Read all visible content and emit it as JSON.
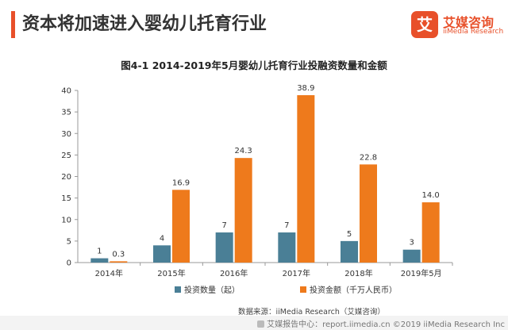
{
  "header": {
    "title": "资本将加速进入婴幼儿托育行业",
    "logo_mark": "艾",
    "logo_cn": "艾媒咨询",
    "logo_en": "iiMedia Research"
  },
  "chart_data": {
    "type": "bar",
    "title": "图4-1 2014-2019年5月婴幼儿托育行业投融资数量和金额",
    "categories": [
      "2014年",
      "2015年",
      "2016年",
      "2017年",
      "2018年",
      "2019年5月"
    ],
    "series": [
      {
        "name": "投资数量（起）",
        "color": "#4a7f96",
        "values": [
          1,
          4,
          7,
          7,
          5,
          3
        ]
      },
      {
        "name": "投资金额（千万人民币）",
        "color": "#ee7a1c",
        "values": [
          0.3,
          16.9,
          24.3,
          38.9,
          22.8,
          14.0
        ]
      }
    ],
    "ylim": [
      0,
      40
    ],
    "yticks": [
      0,
      5,
      10,
      15,
      20,
      25,
      30,
      35,
      40
    ],
    "value_labels": [
      [
        "1",
        "4",
        "7",
        "7",
        "5",
        "3"
      ],
      [
        "0.3",
        "16.9",
        "24.3",
        "38.9",
        "22.8",
        "14.0"
      ]
    ],
    "xlabel": "",
    "ylabel": "",
    "legend_position": "bottom",
    "grid": false
  },
  "source": "数据来源：iiMedia Research（艾媒咨询）",
  "footer": "艾媒报告中心：report.iimedia.cn  ©2019  iiMedia Research Inc"
}
